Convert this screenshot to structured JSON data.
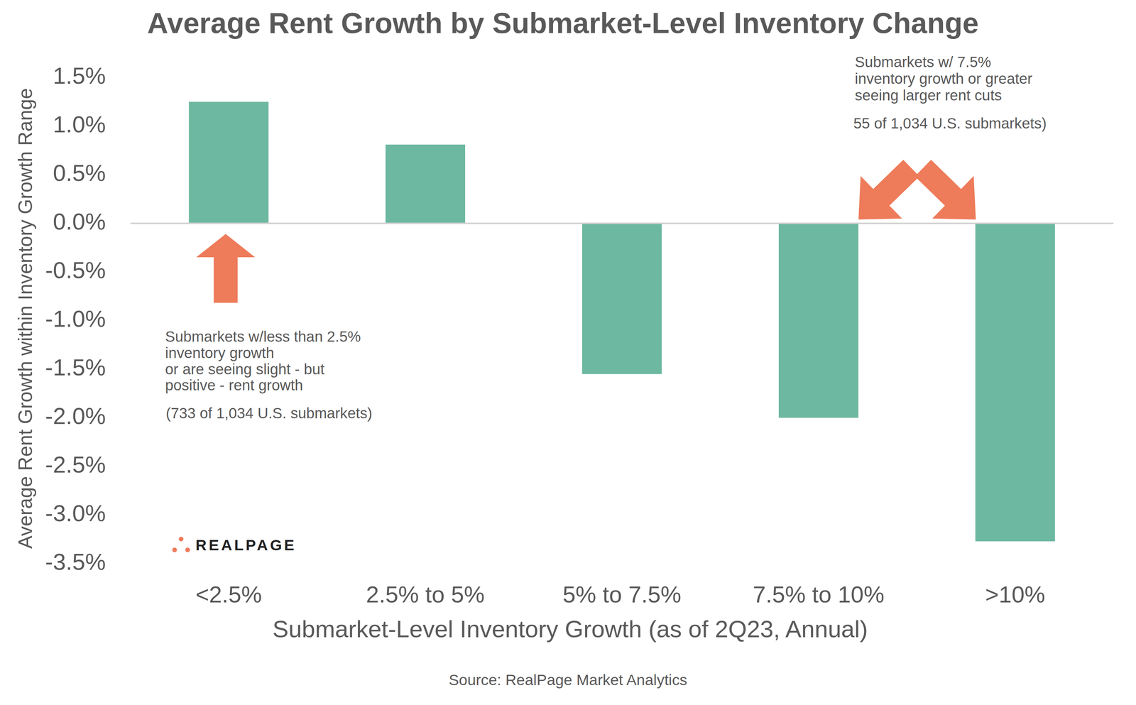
{
  "chart_data": {
    "type": "bar",
    "title": "Average Rent Growth by Submarket-Level Inventory Change",
    "x_label": "Submarket-Level Inventory Growth (as of 2Q23, Annual)",
    "y_label": "Average Rent Growth within Inventory Growth Range",
    "categories": [
      "<2.5%",
      "2.5% to 5%",
      "5% to 7.5%",
      "7.5% to 10%",
      ">10%"
    ],
    "values": [
      1.25,
      0.81,
      -1.55,
      -2.0,
      -3.27
    ],
    "color": "#6cb8a0",
    "ylim": [
      -3.5,
      1.5
    ],
    "yticks": [
      {
        "value": 1.5,
        "label": "1.5%"
      },
      {
        "value": 1.0,
        "label": "1.0%"
      },
      {
        "value": 0.5,
        "label": "0.5%"
      },
      {
        "value": 0.0,
        "label": "0.0%"
      },
      {
        "value": -0.5,
        "label": "-0.5%"
      },
      {
        "value": -1.0,
        "label": "-1.0%"
      },
      {
        "value": -1.5,
        "label": "-1.5%"
      },
      {
        "value": -2.0,
        "label": "-2.0%"
      },
      {
        "value": -2.5,
        "label": "-2.5%"
      },
      {
        "value": -3.0,
        "label": "-3.0%"
      },
      {
        "value": -3.5,
        "label": "-3.5%"
      }
    ],
    "grid": false,
    "annotations": [
      {
        "lines": [
          "Submarkets w/less than 2.5%",
          "inventory growth",
          "or are seeing slight - but",
          "positive - rent growth"
        ],
        "note": "(733 of 1,034 U.S. submarkets)"
      },
      {
        "lines": [
          "Submarkets w/ 7.5%",
          "inventory growth or greater",
          "seeing larger rent cuts"
        ],
        "note": "55 of 1,034 U.S. submarkets)"
      }
    ],
    "logo": "REALPAGE",
    "source": "Source: RealPage Market Analytics"
  }
}
